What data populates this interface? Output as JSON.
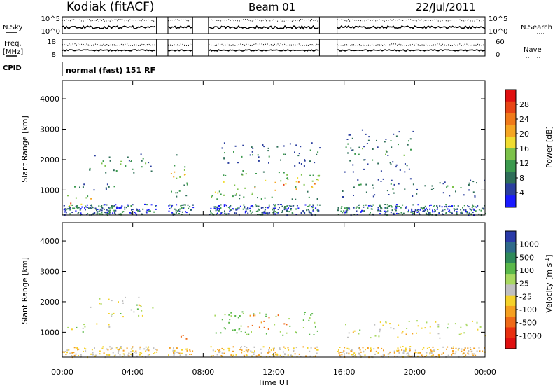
{
  "header": {
    "station": "Kodiak (fitACF)",
    "beam": "Beam 01",
    "date": "22/Jul/2011"
  },
  "top_panels": {
    "nsky_label": "N.Sky",
    "nsky_ticks": [
      "10^5",
      "10^0"
    ],
    "nsearch_label": "N.Search",
    "nsearch_ticks": [
      "10^5",
      "10^0"
    ],
    "freq_label": [
      "Freq.",
      "[MHz]"
    ],
    "freq_ticks": [
      "18",
      "8"
    ],
    "nave_label": "Nave",
    "nave_ticks": [
      "60",
      "0"
    ],
    "cpid_label": "CPID",
    "cpid_text": "normal (fast) 151 RF"
  },
  "colors": {
    "power": [
      "#1a1aff",
      "#2b3f9e",
      "#2e6e58",
      "#3c9a4e",
      "#7cc24a",
      "#f0dc30",
      "#f5a623",
      "#f07a1a",
      "#e84515",
      "#e01010"
    ],
    "velocity": [
      "#2a3aa8",
      "#2f6a8a",
      "#2f8a5a",
      "#5ab84a",
      "#a8d860",
      "#c0c0c0",
      "#f5d22a",
      "#f5a020",
      "#ee6a18",
      "#e83010",
      "#e01010"
    ]
  },
  "chart_data": [
    {
      "type": "heatmap",
      "title": "Power",
      "xlabel": "Time UT",
      "ylabel": "Slant Range [km]",
      "xlim": [
        "00:00",
        "24:00"
      ],
      "ylim": [
        180,
        4600
      ],
      "x_ticks": [
        "00:00",
        "04:00",
        "08:00",
        "12:00",
        "16:00",
        "20:00",
        "00:00"
      ],
      "y_ticks": [
        1000,
        2000,
        3000,
        4000
      ],
      "colorbar": {
        "label": "Power [dB]",
        "ticks": [
          "28",
          "24",
          "20",
          "16",
          "12",
          "8",
          "4"
        ]
      },
      "features": [
        {
          "t_start": 0.0,
          "t_end": 1.6,
          "range_start": 400,
          "range_end": 900,
          "level": 28
        },
        {
          "t_start": 0.0,
          "t_end": 3.0,
          "range_start": 1000,
          "range_end": 1300,
          "level": 12
        },
        {
          "t_start": 1.5,
          "t_end": 5.2,
          "range_start": 1500,
          "range_end": 2200,
          "level": 16
        },
        {
          "t_start": 6.0,
          "t_end": 7.3,
          "range_start": 800,
          "range_end": 2200,
          "level": 20
        },
        {
          "t_start": 8.4,
          "t_end": 14.6,
          "range_start": 700,
          "range_end": 1700,
          "level": 24
        },
        {
          "t_start": 9.0,
          "t_end": 14.6,
          "range_start": 1800,
          "range_end": 2600,
          "level": 12
        },
        {
          "t_start": 15.8,
          "t_end": 24.0,
          "range_start": 800,
          "range_end": 1400,
          "level": 12
        },
        {
          "t_start": 16.0,
          "t_end": 20.0,
          "range_start": 1600,
          "range_end": 3000,
          "level": 14
        }
      ]
    },
    {
      "type": "heatmap",
      "title": "Velocity",
      "xlabel": "Time UT",
      "ylabel": "Slant Range [km]",
      "xlim": [
        "00:00",
        "24:00"
      ],
      "ylim": [
        180,
        4600
      ],
      "x_ticks": [
        "00:00",
        "04:00",
        "08:00",
        "12:00",
        "16:00",
        "20:00",
        "00:00"
      ],
      "y_ticks": [
        1000,
        2000,
        3000,
        4000
      ],
      "colorbar": {
        "label": "Velocity [m s-1]",
        "label_parts": [
          "Velocity  [m s",
          "-1",
          "]"
        ],
        "ticks": [
          "1000",
          "500",
          "100",
          "25",
          "-25",
          "-100",
          "-500",
          "-1000"
        ]
      },
      "features": [
        {
          "t_start": 0.0,
          "t_end": 3.0,
          "range_start": 1000,
          "range_end": 1300,
          "velocity": 0
        },
        {
          "t_start": 1.5,
          "t_end": 5.2,
          "range_start": 1500,
          "range_end": 2200,
          "velocity": 0
        },
        {
          "t_start": 6.5,
          "t_end": 7.5,
          "range_start": 800,
          "range_end": 1200,
          "velocity": -300
        },
        {
          "t_start": 8.4,
          "t_end": 14.6,
          "range_start": 900,
          "range_end": 1700,
          "velocity": 150
        },
        {
          "t_start": 10.5,
          "t_end": 13.0,
          "range_start": 1100,
          "range_end": 1600,
          "velocity": -300
        },
        {
          "t_start": 15.8,
          "t_end": 24.0,
          "range_start": 800,
          "range_end": 1400,
          "velocity": 0
        }
      ]
    }
  ]
}
